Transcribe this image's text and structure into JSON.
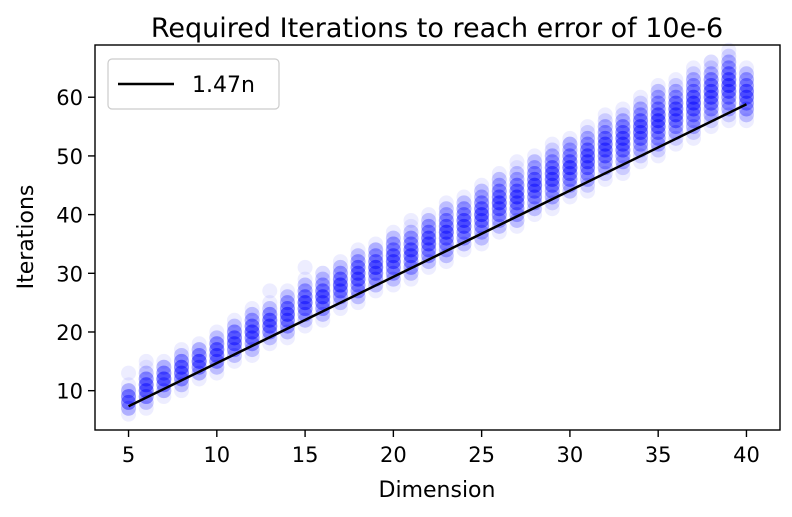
{
  "chart_data": {
    "type": "scatter",
    "title": "Required Iterations to reach error of 10e-6",
    "xlabel": "Dimension",
    "ylabel": "Iterations",
    "xlim": [
      3.1,
      41.9
    ],
    "ylim": [
      3.3,
      68.9
    ],
    "xticks": [
      5,
      10,
      15,
      20,
      25,
      30,
      35,
      40
    ],
    "yticks": [
      10,
      20,
      30,
      40,
      50,
      60
    ],
    "grid": false,
    "legend": {
      "position": "top-left",
      "entries": [
        "1.47n"
      ]
    },
    "colors": {
      "points": "#0000ff",
      "fit_line": "#000000",
      "axes": "#000000"
    },
    "point_alpha": 0.07,
    "series": [
      {
        "name": "iterations",
        "x": [
          5,
          6,
          7,
          8,
          9,
          10,
          11,
          12,
          13,
          14,
          15,
          16,
          17,
          18,
          19,
          20,
          21,
          22,
          23,
          24,
          25,
          26,
          27,
          28,
          29,
          30,
          31,
          32,
          33,
          34,
          35,
          36,
          37,
          38,
          39,
          40
        ],
        "y_range": [
          [
            6,
            11
          ],
          [
            7,
            14
          ],
          [
            9,
            15
          ],
          [
            10,
            17
          ],
          [
            12,
            18
          ],
          [
            13,
            20
          ],
          [
            15,
            22
          ],
          [
            16,
            24
          ],
          [
            18,
            25
          ],
          [
            19,
            27
          ],
          [
            21,
            29
          ],
          [
            22,
            30
          ],
          [
            24,
            32
          ],
          [
            25,
            34
          ],
          [
            27,
            35
          ],
          [
            28,
            37
          ],
          [
            29,
            38
          ],
          [
            31,
            40
          ],
          [
            32,
            42
          ],
          [
            34,
            43
          ],
          [
            35,
            45
          ],
          [
            37,
            47
          ],
          [
            38,
            48
          ],
          [
            40,
            50
          ],
          [
            41,
            52
          ],
          [
            43,
            53
          ],
          [
            44,
            55
          ],
          [
            46,
            57
          ],
          [
            47,
            58
          ],
          [
            49,
            60
          ],
          [
            50,
            62
          ],
          [
            52,
            63
          ],
          [
            53,
            65
          ],
          [
            55,
            66
          ],
          [
            56,
            68
          ],
          [
            56,
            65
          ]
        ],
        "y_range_note": "",
        "outliers": [
          [
            5,
            13
          ],
          [
            6,
            15
          ],
          [
            13,
            27
          ],
          [
            15,
            31
          ],
          [
            16,
            30
          ],
          [
            18,
            31
          ],
          [
            19,
            34
          ],
          [
            21,
            39
          ],
          [
            27,
            49
          ],
          [
            30,
            52
          ],
          [
            33,
            55
          ],
          [
            35,
            61
          ],
          [
            38,
            66
          ],
          [
            38,
            63
          ],
          [
            39,
            64
          ]
        ]
      },
      {
        "name": "1.47n",
        "type": "line",
        "x": [
          5,
          40
        ],
        "y": [
          7.35,
          58.8
        ]
      }
    ]
  }
}
